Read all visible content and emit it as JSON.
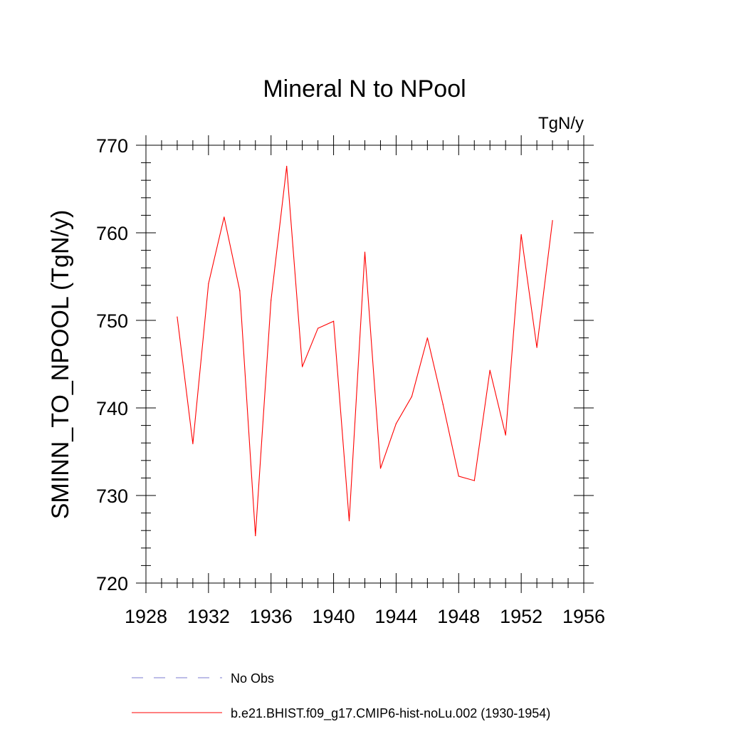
{
  "chart_data": {
    "type": "line",
    "title": "Mineral N to NPool",
    "units_label": "TgN/y",
    "ylabel": "SMINN_TO_NPOOL  (TgN/y)",
    "xlabel": "",
    "xlim": [
      1928,
      1956
    ],
    "ylim": [
      720,
      770
    ],
    "x_ticks": [
      1928,
      1932,
      1936,
      1940,
      1944,
      1948,
      1952,
      1956
    ],
    "x_tick_labels": [
      "1928",
      "1932",
      "1936",
      "1940",
      "1944",
      "1948",
      "1952",
      "1956"
    ],
    "y_ticks": [
      720,
      730,
      740,
      750,
      760,
      770
    ],
    "y_tick_labels": [
      "720",
      "730",
      "740",
      "750",
      "760",
      "770"
    ],
    "grid": false,
    "legend_position": "bottom",
    "series": [
      {
        "name": "No Obs",
        "color": "#7b7bd0",
        "dash": "dashed",
        "x": [],
        "values": []
      },
      {
        "name": "b.e21.BHIST.f09_g17.CMIP6-hist-noLu.002 (1930-1954)",
        "color": "#ff0000",
        "dash": "solid",
        "x": [
          1930,
          1931,
          1932,
          1933,
          1934,
          1935,
          1936,
          1937,
          1938,
          1939,
          1940,
          1941,
          1942,
          1943,
          1944,
          1945,
          1946,
          1947,
          1948,
          1949,
          1950,
          1951,
          1952,
          1953,
          1954
        ],
        "values": [
          750.4,
          735.9,
          754.2,
          761.8,
          753.4,
          725.4,
          752.3,
          767.6,
          744.7,
          749.1,
          749.9,
          727.1,
          757.8,
          733.1,
          738.2,
          741.3,
          748.0,
          740.4,
          732.2,
          731.7,
          744.3,
          736.9,
          759.8,
          746.9,
          761.4
        ]
      }
    ]
  }
}
